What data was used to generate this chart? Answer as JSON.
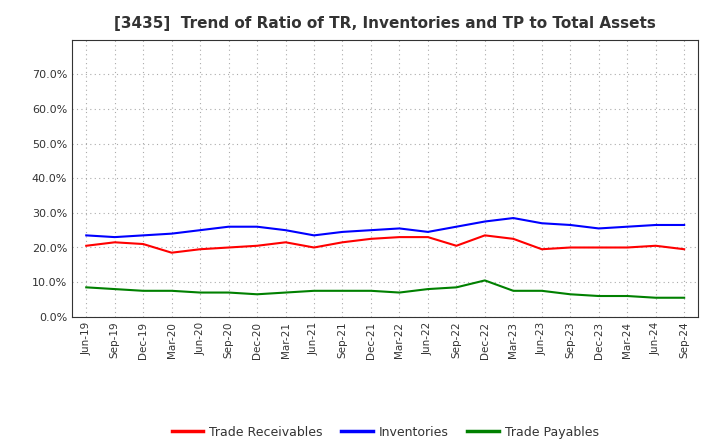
{
  "title": "[3435]  Trend of Ratio of TR, Inventories and TP to Total Assets",
  "labels": [
    "Jun-19",
    "Sep-19",
    "Dec-19",
    "Mar-20",
    "Jun-20",
    "Sep-20",
    "Dec-20",
    "Mar-21",
    "Jun-21",
    "Sep-21",
    "Dec-21",
    "Mar-22",
    "Jun-22",
    "Sep-22",
    "Dec-22",
    "Mar-23",
    "Jun-23",
    "Sep-23",
    "Dec-23",
    "Mar-24",
    "Jun-24",
    "Sep-24"
  ],
  "trade_receivables": [
    0.205,
    0.215,
    0.21,
    0.185,
    0.195,
    0.2,
    0.205,
    0.215,
    0.2,
    0.215,
    0.225,
    0.23,
    0.23,
    0.205,
    0.235,
    0.225,
    0.195,
    0.2,
    0.2,
    0.2,
    0.205,
    0.195
  ],
  "inventories": [
    0.235,
    0.23,
    0.235,
    0.24,
    0.25,
    0.26,
    0.26,
    0.25,
    0.235,
    0.245,
    0.25,
    0.255,
    0.245,
    0.26,
    0.275,
    0.285,
    0.27,
    0.265,
    0.255,
    0.26,
    0.265,
    0.265
  ],
  "trade_payables": [
    0.085,
    0.08,
    0.075,
    0.075,
    0.07,
    0.07,
    0.065,
    0.07,
    0.075,
    0.075,
    0.075,
    0.07,
    0.08,
    0.085,
    0.105,
    0.075,
    0.075,
    0.065,
    0.06,
    0.06,
    0.055,
    0.055
  ],
  "tr_color": "#ff0000",
  "inv_color": "#0000ff",
  "tp_color": "#008000",
  "ylim": [
    0.0,
    0.8
  ],
  "yticks": [
    0.0,
    0.1,
    0.2,
    0.3,
    0.4,
    0.5,
    0.6,
    0.7
  ],
  "background_color": "#ffffff",
  "plot_bg_color": "#ffffff",
  "grid_color": "#888888",
  "title_fontsize": 11,
  "title_color": "#333333",
  "legend_labels": [
    "Trade Receivables",
    "Inventories",
    "Trade Payables"
  ]
}
